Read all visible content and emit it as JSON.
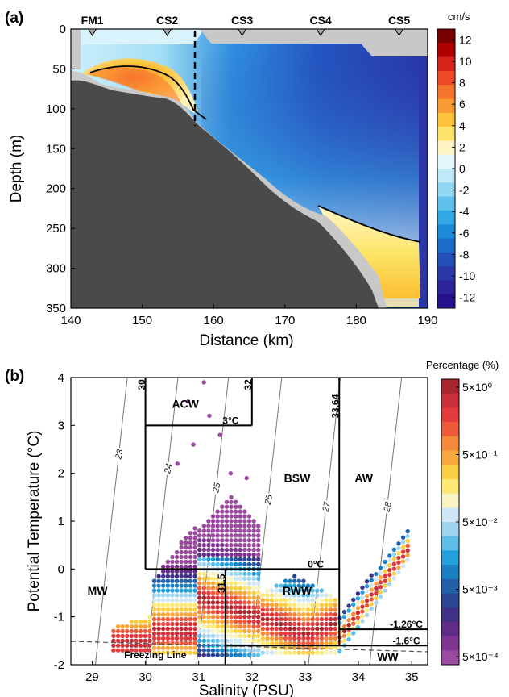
{
  "chart_data": [
    {
      "panel": "(a)",
      "type": "heatmap",
      "xlabel": "Distance (km)",
      "ylabel": "Depth (m)",
      "xlim": [
        140,
        190
      ],
      "ylim": [
        350,
        0
      ],
      "xticks": [
        140,
        150,
        160,
        170,
        180,
        190
      ],
      "yticks": [
        0,
        50,
        100,
        150,
        200,
        250,
        300,
        350
      ],
      "stations": [
        {
          "name": "FM1",
          "x": 143
        },
        {
          "name": "CS2",
          "x": 153.5
        },
        {
          "name": "CS3",
          "x": 164
        },
        {
          "name": "CS4",
          "x": 175
        },
        {
          "name": "CS5",
          "x": 186
        }
      ],
      "divider_x": 158,
      "colorbar": {
        "unit": "cm/s",
        "range": [
          -13,
          13
        ],
        "ticks": [
          "12",
          "10",
          "8",
          "6",
          "4",
          "2",
          "0",
          "-2",
          "-4",
          "-6",
          "-8",
          "-10",
          "-12"
        ],
        "colors": [
          "#7a0000",
          "#b00000",
          "#d6231c",
          "#ec4a26",
          "#f7742e",
          "#fa9a35",
          "#fcc23b",
          "#fee36a",
          "#fff5c4",
          "#e3f6fb",
          "#bfe9f7",
          "#8fd7f2",
          "#5fc1ec",
          "#33a8e6",
          "#1b8ad8",
          "#1a6cc8",
          "#2451b7",
          "#2b39a6",
          "#2c2599",
          "#26118c"
        ]
      }
    },
    {
      "panel": "(b)",
      "type": "scatter",
      "xlabel": "Salinity (PSU)",
      "ylabel": "Potential Temperature (°C)",
      "xlim": [
        28.6,
        35.3
      ],
      "ylim": [
        -2,
        4
      ],
      "xticks": [
        29,
        30,
        31,
        32,
        33,
        34,
        35
      ],
      "yticks": [
        -2,
        -1,
        0,
        1,
        2,
        3,
        4
      ],
      "isopycnals": [
        "23",
        "24",
        "25",
        "26",
        "27",
        "28"
      ],
      "water_masses": [
        "ACW",
        "BSW",
        "AW",
        "MW",
        "RWW",
        "WW"
      ],
      "boundary_labels": [
        "30",
        "32",
        "33.64",
        "3°C",
        "0°C",
        "31.5",
        "-1.26°C",
        "-1.6°C"
      ],
      "freezing_line_label": "Freezing Line",
      "colorbar": {
        "title": "Percentage (%)",
        "ticks": [
          "5×10⁰",
          "5×10⁻¹",
          "5×10⁻²",
          "5×10⁻³",
          "5×10⁻⁴"
        ],
        "colors": [
          "#a8262d",
          "#c9303a",
          "#e33a3c",
          "#ee5b3b",
          "#f4883b",
          "#f7a83e",
          "#fbcf45",
          "#fde876",
          "#f8f3c3",
          "#cfe6f4",
          "#9fd5f0",
          "#5cbde9",
          "#24a1dc",
          "#1a7fc3",
          "#2260a8",
          "#2b4596",
          "#403187",
          "#5f2d86",
          "#7e3690",
          "#9b4a9f"
        ]
      }
    }
  ]
}
